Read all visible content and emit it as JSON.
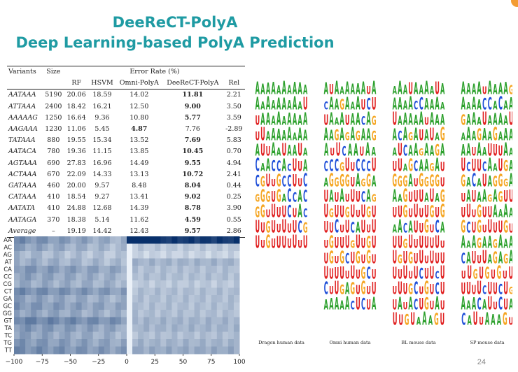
{
  "title": {
    "line1": "DeeReCT-PolyA",
    "line2": "Deep Learning-based PolyA Prediction"
  },
  "table": {
    "col_variants": "Variants",
    "col_size": "Size",
    "col_error_rate": "Error Rate (%)",
    "sub_headers": [
      "RF",
      "HSVM",
      "Omni-PolyA",
      "DeeReCT-PolyA",
      "Rel"
    ],
    "rows": [
      {
        "variant": "AATAAA",
        "size": "5190",
        "rf": "20.06",
        "hsvm": "18.59",
        "omni": "14.02",
        "deerect": "11.81",
        "rel": "2.21",
        "best": "deerect"
      },
      {
        "variant": "ATTAAA",
        "size": "2400",
        "rf": "18.42",
        "hsvm": "16.21",
        "omni": "12.50",
        "deerect": "9.00",
        "rel": "3.50",
        "best": "deerect"
      },
      {
        "variant": "AAAAAG",
        "size": "1250",
        "rf": "16.64",
        "hsvm": "9.36",
        "omni": "10.80",
        "deerect": "5.77",
        "rel": "3.59",
        "best": "deerect"
      },
      {
        "variant": "AAGAAA",
        "size": "1230",
        "rf": "11.06",
        "hsvm": "5.45",
        "omni": "4.87",
        "deerect": "7.76",
        "rel": "-2.89",
        "best": "omni"
      },
      {
        "variant": "TATAAA",
        "size": "880",
        "rf": "19.55",
        "hsvm": "15.34",
        "omni": "13.52",
        "deerect": "7.69",
        "rel": "5.83",
        "best": "deerect"
      },
      {
        "variant": "AATACA",
        "size": "780",
        "rf": "19.36",
        "hsvm": "11.15",
        "omni": "13.85",
        "deerect": "10.45",
        "rel": "0.70",
        "best": "deerect"
      },
      {
        "variant": "AGTAAA",
        "size": "690",
        "rf": "27.83",
        "hsvm": "16.96",
        "omni": "14.49",
        "deerect": "9.55",
        "rel": "4.94",
        "best": "deerect"
      },
      {
        "variant": "ACTAAA",
        "size": "670",
        "rf": "22.09",
        "hsvm": "14.33",
        "omni": "13.13",
        "deerect": "10.72",
        "rel": "2.41",
        "best": "deerect"
      },
      {
        "variant": "GATAAA",
        "size": "460",
        "rf": "20.00",
        "hsvm": "9.57",
        "omni": "8.48",
        "deerect": "8.04",
        "rel": "0.44",
        "best": "deerect"
      },
      {
        "variant": "CATAAA",
        "size": "410",
        "rf": "18.54",
        "hsvm": "9.27",
        "omni": "13.41",
        "deerect": "9.02",
        "rel": "0.25",
        "best": "deerect"
      },
      {
        "variant": "AATATA",
        "size": "410",
        "rf": "24.88",
        "hsvm": "12.68",
        "omni": "14.39",
        "deerect": "8.78",
        "rel": "3.90",
        "best": "deerect"
      },
      {
        "variant": "AATAGA",
        "size": "370",
        "rf": "18.38",
        "hsvm": "5.14",
        "omni": "11.62",
        "deerect": "4.59",
        "rel": "0.55",
        "best": "deerect"
      },
      {
        "variant": "Average",
        "size": "–",
        "rf": "19.19",
        "hsvm": "14.42",
        "omni": "12.43",
        "deerect": "9.57",
        "rel": "2.86",
        "best": "deerect"
      }
    ]
  },
  "chart_data": {
    "type": "heatmap",
    "y_categories": [
      "AA",
      "AC",
      "AG",
      "AT",
      "CA",
      "CC",
      "CG",
      "CT",
      "GA",
      "GC",
      "GG",
      "GT",
      "TA",
      "TC",
      "TG",
      "TT"
    ],
    "x_range": [
      -100,
      100
    ],
    "x_ticks": [
      "−100",
      "−75",
      "−50",
      "−25",
      "0",
      "25",
      "50",
      "75",
      "100"
    ],
    "x_tick_values": [
      -100,
      -75,
      -50,
      -25,
      0,
      25,
      50,
      75,
      100
    ],
    "colormap": [
      "#f7fbff",
      "#08306b"
    ],
    "row_intensity": [
      [
        0.55,
        0.35,
        0.95
      ],
      [
        0.45,
        0.3,
        0.25
      ],
      [
        0.35,
        0.25,
        0.2
      ],
      [
        0.4,
        0.3,
        0.35
      ],
      [
        0.5,
        0.4,
        0.3
      ],
      [
        0.45,
        0.35,
        0.3
      ],
      [
        0.4,
        0.35,
        0.25
      ],
      [
        0.55,
        0.45,
        0.3
      ],
      [
        0.45,
        0.35,
        0.3
      ],
      [
        0.5,
        0.4,
        0.3
      ],
      [
        0.45,
        0.35,
        0.3
      ],
      [
        0.6,
        0.5,
        0.35
      ],
      [
        0.5,
        0.4,
        0.35
      ],
      [
        0.45,
        0.35,
        0.3
      ],
      [
        0.5,
        0.4,
        0.35
      ],
      [
        0.55,
        0.45,
        0.4
      ]
    ],
    "hotspot": {
      "x_from": 2,
      "x_to": 25,
      "row": "AA",
      "value": 1.0
    }
  },
  "logo_colors": {
    "A": "#2ca02c",
    "C": "#1f4fd8",
    "G": "#f5a623",
    "T": "#e02020"
  },
  "logo_panels": [
    {
      "label": "Dragon human data",
      "rows": [
        "AAAAAAAAAA",
        "AAAAAAAAAU",
        "UAAAAAAAAA",
        "UUAAAAAAAA",
        "AUUAAUAAUA",
        "CAACCACUUA",
        "CGUUGCCUUC",
        "GGGUGACCAC",
        "GGUUUUCUAC",
        "UUGUUUUUCG",
        "UUGUUUUUUU"
      ]
    },
    {
      "label": "Omni human data",
      "rows": [
        "AUAAAAAAUA",
        "CAAGAAAUCU",
        "UAAAUAACAG",
        "AAGAGAGAAG",
        "AUUCAAUAA",
        "CCCGUUCCCU",
        "AGGGGUAGGA",
        "UAUAUUUCAG",
        "UGUUGUUUGU",
        "UUCUUCAUUU",
        "UGUUUGUUGU",
        "UGUGCUGUGU",
        "UUUUUUUGCU",
        "CUUGAGUGUU",
        "AAAAACUCUA"
      ]
    },
    {
      "label": "BL mouse data",
      "rows": [
        "AAAUAAAAUA",
        "AAAACCAAAA",
        "UAAAAAUAAA",
        "ACAGAUAUAG",
        "AUCAAGAAGA",
        "UUAGCAAGAU",
        "GGGAUGGGGU",
        "AAGUUUAUAG",
        "UUGUUUUGUG",
        "AACAUUGUCA",
        "UUGUUUUUUU",
        "UGUGUUUUUU",
        "UUUUUCUUCU",
        "UUUGCUGUCU",
        "UAUACUGUAU",
        "UUGUAAAGU"
      ]
    },
    {
      "label": "SP mouse data",
      "rows": [
        "AAAAUAAAAG",
        "AAAACCACAA",
        "GAAAUAAAAU",
        "AAAGAAGAAA",
        "AAUAAUUUAA",
        "UCUUCAAUGA",
        "GACAUAGGGA",
        "UAUAAGAGUU",
        "UUUGUUAAAA",
        "GCUGUUUUGU",
        "AAAGAAGAAA",
        "CAUUUAGAGA",
        "UUGUGUGUU",
        "UUUUCUUCUG",
        "AAACAUUCUA",
        "CAUUAAAGU"
      ]
    }
  ],
  "page_number": "24"
}
